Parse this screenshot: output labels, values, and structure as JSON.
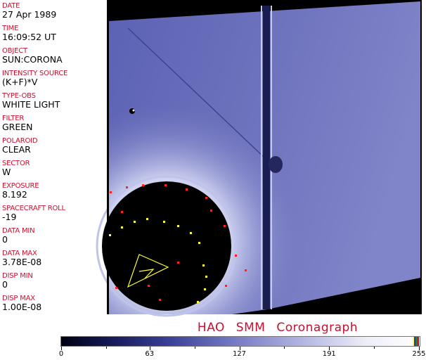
{
  "fields": [
    {
      "label": "DATE",
      "value": "27 Apr 1989"
    },
    {
      "label": "TIME",
      "value": "16:09:52 UT"
    },
    {
      "label": "OBJECT",
      "value": "SUN:CORONA"
    },
    {
      "label": "INTENSITY SOURCE",
      "value": "(K+F)*V"
    },
    {
      "label": "TYPE-OBS",
      "value": "WHITE LIGHT"
    },
    {
      "label": "FILTER",
      "value": "GREEN"
    },
    {
      "label": "POLAROID",
      "value": "CLEAR"
    },
    {
      "label": "SECTOR",
      "value": "W"
    },
    {
      "label": "EXPOSURE",
      "value": "8.192"
    },
    {
      "label": "SPACECRAFT ROLL",
      "value": "-19"
    },
    {
      "label": "DATA MIN",
      "value": "0"
    },
    {
      "label": "DATA MAX",
      "value": "3.78E-08"
    },
    {
      "label": "DISP MIN",
      "value": "0"
    },
    {
      "label": "DISP MAX",
      "value": "1.00E-08"
    }
  ],
  "title": "HAO  SMM Coronagraph",
  "colorbar": {
    "ticks": [
      "0",
      "63",
      "127",
      "191",
      "255"
    ],
    "colors": {
      "low": "#000010",
      "mid": "#7479c4",
      "high": "#ffffff",
      "marker_red": "#c8102e",
      "marker_yellow": "#ffff33"
    }
  }
}
